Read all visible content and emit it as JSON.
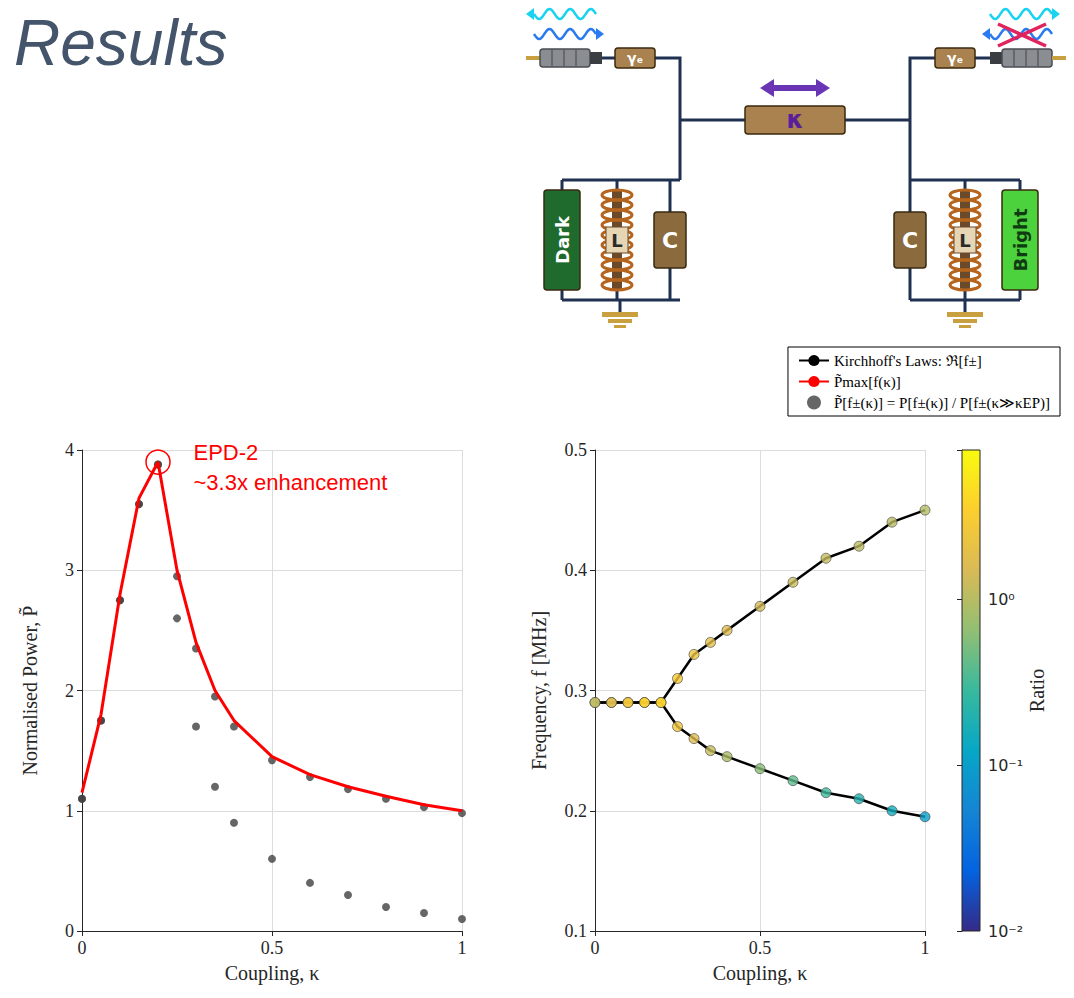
{
  "header": {
    "title": "Results"
  },
  "diagram": {
    "labels": {
      "left_gamma": "γₑ",
      "coupling": "κ",
      "right_gamma": "γₑ",
      "dark": "Dark",
      "bright": "Bright",
      "inductor": "L",
      "capacitor": "C"
    }
  },
  "chart_data": {
    "type": "line",
    "x_label": "Coupling, κ",
    "y_label": "Normalised Power, P̃",
    "frequency_label": "Frequency, f [MHz]",
    "x": [
      0,
      0.05,
      0.1,
      0.15,
      0.2,
      0.25,
      0.3,
      0.35,
      0.4,
      0.5,
      0.6,
      0.7,
      0.8,
      0.9,
      1.0
    ],
    "xlim": [
      0,
      1
    ],
    "xticks": [
      0,
      0.5,
      1
    ],
    "ylim": [
      0,
      4
    ],
    "yticks": [
      0,
      1,
      2,
      3,
      4
    ],
    "flim": [
      0.1,
      0.5
    ],
    "fticks": [
      0.1,
      0.2,
      0.3,
      0.4,
      0.5
    ],
    "grid": true,
    "legend": "top-right",
    "annotations": [
      "EPD-2",
      "~3.3x enhancement"
    ],
    "series": [
      {
        "name": "Kirchhoff's Laws: ℜ[f±]",
        "type": "line",
        "axis": "frequency",
        "color": "#000000",
        "values": [
          0.29,
          0.29,
          0.29,
          0.29,
          0.29,
          0.31,
          0.33,
          0.34,
          0.35,
          0.37,
          0.39,
          0.41,
          0.42,
          0.44,
          0.45
        ]
      },
      {
        "name": "Kirchhoff's Laws: ℜ[f±]",
        "type": "line",
        "axis": "frequency",
        "color": "#000000",
        "values": [
          0.29,
          0.29,
          0.29,
          0.29,
          0.29,
          0.27,
          0.26,
          0.25,
          0.245,
          0.235,
          0.225,
          0.215,
          0.21,
          0.2,
          0.195
        ]
      },
      {
        "name": "P̃max[f(κ)]",
        "type": "line",
        "color": "#ff0000",
        "values": [
          1.15,
          1.8,
          2.8,
          3.6,
          3.9,
          3.0,
          2.4,
          2.0,
          1.75,
          1.45,
          1.3,
          1.2,
          1.12,
          1.05,
          1.0
        ]
      },
      {
        "name": "P̃[f±(κ)] = P[f±(κ)] / P[f±(κ≫κEP)]",
        "type": "scatter",
        "marker": "circle",
        "color": "#404040",
        "values": [
          1.1,
          1.75,
          2.75,
          3.55,
          3.88,
          2.95,
          2.35,
          1.95,
          1.7,
          1.42,
          1.28,
          1.18,
          1.1,
          1.03,
          0.98
        ]
      },
      {
        "name": "P̃[f±(κ)] = P[f±(κ)] / P[f±(κ≫κEP)]",
        "type": "scatter",
        "marker": "circle",
        "color": "#404040",
        "values": [
          1.1,
          1.75,
          2.75,
          3.55,
          3.88,
          2.6,
          1.7,
          1.2,
          0.9,
          0.6,
          0.4,
          0.3,
          0.2,
          0.15,
          0.1
        ]
      }
    ],
    "colorbar": {
      "label": "Ratio",
      "lim": [
        0.01,
        8
      ],
      "ticks": [
        {
          "value": 0.01,
          "label": "10⁻²"
        },
        {
          "value": 0.1,
          "label": "10⁻¹"
        },
        {
          "value": 1,
          "label": "10⁰"
        }
      ]
    }
  }
}
